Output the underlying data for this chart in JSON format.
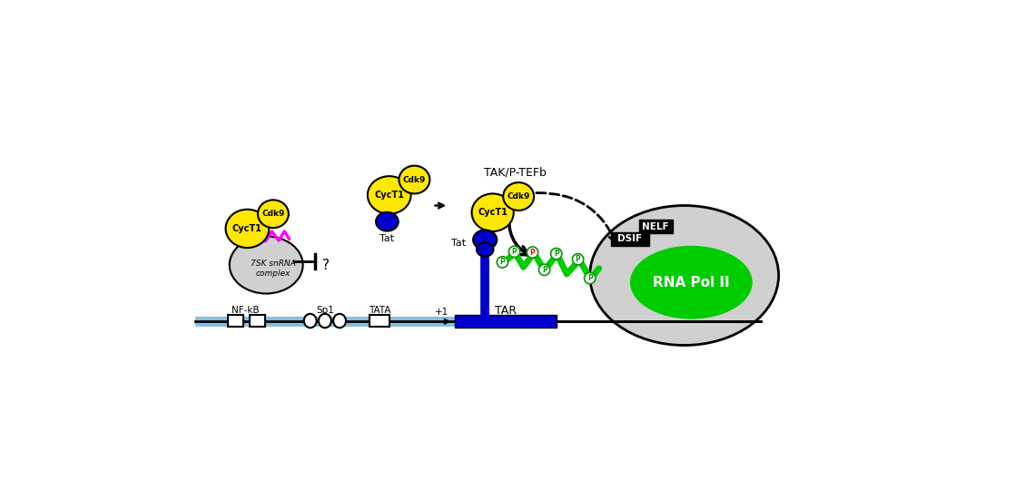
{
  "bg_color": "#ffffff",
  "yellow_color": "#FFE800",
  "blue_dark": "#0000CD",
  "green_bright": "#00CC00",
  "magenta": "#FF00FF",
  "gray_light": "#D0D0D0",
  "black": "#000000",
  "white": "#ffffff",
  "red": "#FF0000",
  "lightblue": "#87BFDF",
  "label_cdk9": "Cdk9",
  "label_cyct1": "CycT1",
  "label_tat": "Tat",
  "label_tak": "TAK/P-TEFb",
  "label_tar": "TAR",
  "label_nfkb": "NF-kB",
  "label_sp1": "Sp1",
  "label_tata": "TATA",
  "label_dsif": "DSIF",
  "label_nelf": "NELF",
  "label_rnapol": "RNA Pol II",
  "label_7sk": "7SK snRNA\ncomplex"
}
